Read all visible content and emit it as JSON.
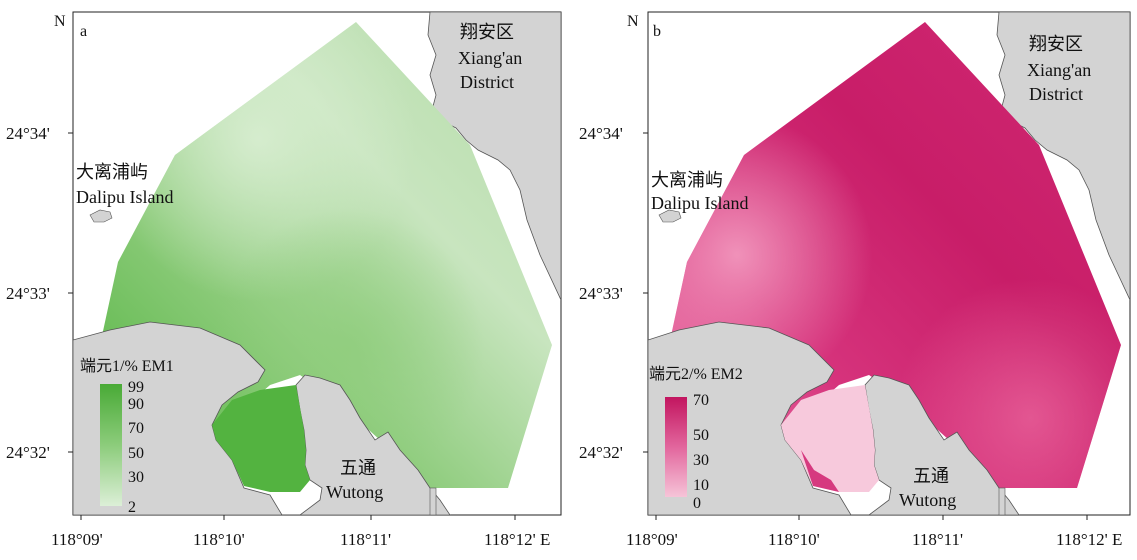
{
  "panels": [
    {
      "id": "a",
      "letter": "a",
      "north": "N",
      "place_xiangan_zh": "翔安区",
      "place_xiangan_en1": "Xiang'an",
      "place_xiangan_en2": "District",
      "place_dalipu_zh": "大离浦屿",
      "place_dalipu_en": "Dalipu Island",
      "place_wutong_zh": "五通",
      "place_wutong_en": "Wutong",
      "legend_title": "端元1/%  EM1",
      "legend_ticks": [
        "99",
        "90",
        "70",
        "50",
        "30",
        "2"
      ],
      "legend_colors": [
        "#49aa36",
        "#dcefd7"
      ],
      "lat_labels": [
        "24°34'",
        "24°33'",
        "24°32'"
      ],
      "lon_labels": [
        "118°09'",
        "118°10'",
        "118°11'",
        "118°12' E"
      ]
    },
    {
      "id": "b",
      "letter": "b",
      "north": "N",
      "place_xiangan_zh": "翔安区",
      "place_xiangan_en1": "Xiang'an",
      "place_xiangan_en2": "District",
      "place_dalipu_zh": "大离浦屿",
      "place_dalipu_en": "Dalipu Island",
      "place_wutong_zh": "五通",
      "place_wutong_en": "Wutong",
      "legend_title": "端元2/%  EM2",
      "legend_ticks": [
        "70",
        "50",
        "30",
        "10",
        "0"
      ],
      "legend_colors": [
        "#c2155f",
        "#f6c4d8"
      ],
      "lat_labels": [
        "24°34'",
        "24°33'",
        "24°32'"
      ],
      "lon_labels": [
        "118°09'",
        "118°10'",
        "118°11'",
        "118°12' E"
      ]
    }
  ]
}
